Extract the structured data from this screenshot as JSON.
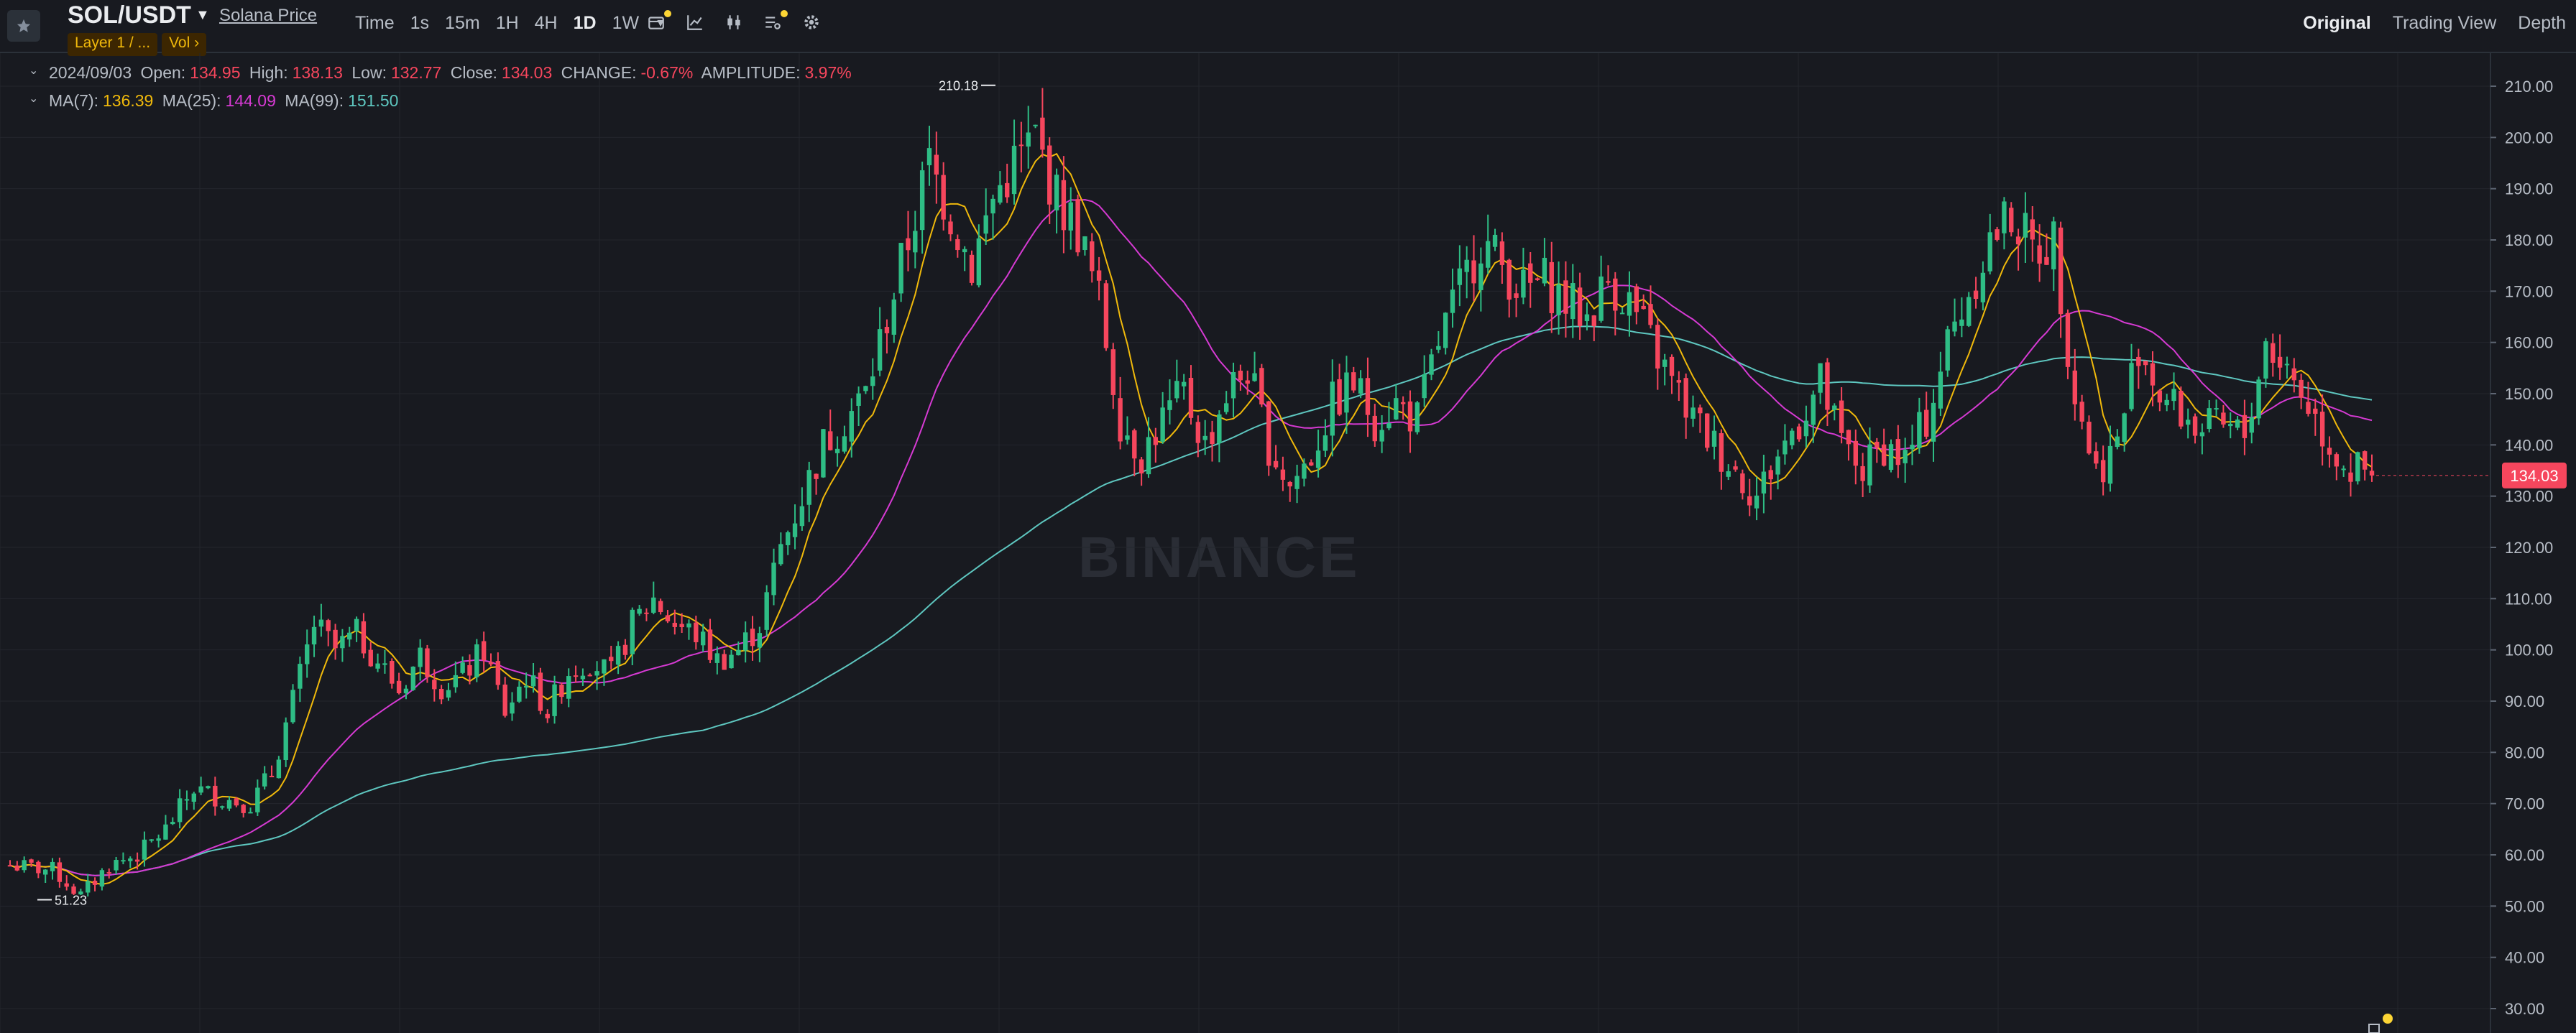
{
  "header": {
    "symbol": "SOL/USDT",
    "price_link": "Solana Price",
    "tags": [
      "Layer 1 / ...",
      "Vol  ›"
    ],
    "intervals": [
      {
        "label": "Time",
        "active": false
      },
      {
        "label": "1s",
        "active": false
      },
      {
        "label": "15m",
        "active": false
      },
      {
        "label": "1H",
        "active": false
      },
      {
        "label": "4H",
        "active": false
      },
      {
        "label": "1D",
        "active": true
      },
      {
        "label": "1W",
        "active": false
      }
    ],
    "views": [
      {
        "label": "Original",
        "active": true
      },
      {
        "label": "Trading View",
        "active": false
      },
      {
        "label": "Depth",
        "active": false
      }
    ]
  },
  "ohlc": {
    "date": "2024/09/03",
    "open_label": "Open:",
    "open": "134.95",
    "high_label": "High:",
    "high": "138.13",
    "low_label": "Low:",
    "low": "132.77",
    "close_label": "Close:",
    "close": "134.03",
    "change_label": "CHANGE:",
    "change": "-0.67%",
    "amplitude_label": "AMPLITUDE:",
    "amplitude": "3.97%"
  },
  "ma": {
    "ma7_label": "MA(7):",
    "ma7": "136.39",
    "ma25_label": "MA(25):",
    "ma25": "144.09",
    "ma99_label": "MA(99):",
    "ma99": "151.50"
  },
  "watermark": "BINANCE",
  "colors": {
    "up": "#2ebd85",
    "down": "#f6465d",
    "ma7": "#f0b90b",
    "ma25": "#d63ad3",
    "ma99": "#5ec7c0",
    "accent": "#fcd535",
    "bg": "#181a20",
    "grid": "#23262d"
  },
  "chart_data": {
    "type": "candlestick",
    "title": "SOL/USDT",
    "interval": "1D",
    "ylim": [
      25,
      215
    ],
    "y_ticks": [
      210,
      200,
      190,
      180,
      170,
      160,
      150,
      140,
      130,
      120,
      110,
      100,
      90,
      80,
      70,
      60,
      50,
      40,
      30
    ],
    "y_tick_labels": [
      "210.00",
      "200.00",
      "190.00",
      "180.00",
      "170.00",
      "160.00",
      "150.00",
      "140.00",
      "130.00",
      "120.00",
      "110.00",
      "100.00",
      "90.00",
      "80.00",
      "70.00",
      "60.00",
      "50.00",
      "40.00",
      "30.00"
    ],
    "last_price_label": "134.03",
    "last_price": 134.03,
    "high_marker": {
      "value": 210.18,
      "label": "210.18"
    },
    "low_marker": {
      "value": 51.23,
      "label": "51.23"
    },
    "close_path": [
      [
        0,
        58
      ],
      [
        6,
        57
      ],
      [
        10,
        52
      ],
      [
        14,
        58
      ],
      [
        18,
        60
      ],
      [
        22,
        65
      ],
      [
        26,
        73
      ],
      [
        30,
        71
      ],
      [
        34,
        70
      ],
      [
        37,
        76
      ],
      [
        40,
        90
      ],
      [
        43,
        105
      ],
      [
        46,
        100
      ],
      [
        49,
        103
      ],
      [
        52,
        98
      ],
      [
        55,
        92
      ],
      [
        58,
        99
      ],
      [
        61,
        93
      ],
      [
        64,
        95
      ],
      [
        67,
        100
      ],
      [
        70,
        88
      ],
      [
        73,
        95
      ],
      [
        76,
        88
      ],
      [
        79,
        96
      ],
      [
        82,
        98
      ],
      [
        85,
        95
      ],
      [
        88,
        105
      ],
      [
        91,
        110
      ],
      [
        94,
        105
      ],
      [
        97,
        103
      ],
      [
        100,
        98
      ],
      [
        103,
        100
      ],
      [
        106,
        105
      ],
      [
        109,
        120
      ],
      [
        112,
        130
      ],
      [
        115,
        140
      ],
      [
        118,
        145
      ],
      [
        121,
        150
      ],
      [
        124,
        165
      ],
      [
        127,
        180
      ],
      [
        130,
        195
      ],
      [
        133,
        185
      ],
      [
        136,
        175
      ],
      [
        139,
        188
      ],
      [
        142,
        195
      ],
      [
        145,
        200
      ],
      [
        148,
        188
      ],
      [
        151,
        182
      ],
      [
        154,
        168
      ],
      [
        157,
        145
      ],
      [
        160,
        138
      ],
      [
        163,
        145
      ],
      [
        166,
        150
      ],
      [
        169,
        140
      ],
      [
        172,
        150
      ],
      [
        175,
        155
      ],
      [
        178,
        140
      ],
      [
        181,
        132
      ],
      [
        184,
        138
      ],
      [
        187,
        148
      ],
      [
        190,
        152
      ],
      [
        193,
        145
      ],
      [
        196,
        148
      ],
      [
        199,
        145
      ],
      [
        202,
        160
      ],
      [
        205,
        170
      ],
      [
        208,
        180
      ],
      [
        211,
        175
      ],
      [
        214,
        170
      ],
      [
        217,
        172
      ],
      [
        220,
        168
      ],
      [
        223,
        165
      ],
      [
        226,
        172
      ],
      [
        229,
        168
      ],
      [
        232,
        160
      ],
      [
        235,
        152
      ],
      [
        238,
        145
      ],
      [
        241,
        140
      ],
      [
        244,
        135
      ],
      [
        247,
        130
      ],
      [
        250,
        138
      ],
      [
        253,
        145
      ],
      [
        256,
        152
      ],
      [
        259,
        140
      ],
      [
        262,
        135
      ],
      [
        265,
        140
      ],
      [
        268,
        137
      ],
      [
        271,
        145
      ],
      [
        274,
        160
      ],
      [
        277,
        170
      ],
      [
        280,
        180
      ],
      [
        283,
        185
      ],
      [
        286,
        178
      ],
      [
        289,
        180
      ],
      [
        292,
        150
      ],
      [
        295,
        135
      ],
      [
        298,
        140
      ],
      [
        301,
        160
      ],
      [
        304,
        150
      ],
      [
        307,
        146
      ],
      [
        310,
        143
      ],
      [
        313,
        143
      ],
      [
        316,
        142
      ],
      [
        319,
        160
      ],
      [
        322,
        155
      ],
      [
        325,
        148
      ],
      [
        328,
        140
      ],
      [
        331,
        135
      ],
      [
        334,
        134
      ]
    ],
    "series": [
      {
        "name": "MA(7)",
        "last": 136.39
      },
      {
        "name": "MA(25)",
        "last": 144.09
      },
      {
        "name": "MA(99)",
        "last": 151.5
      }
    ]
  }
}
